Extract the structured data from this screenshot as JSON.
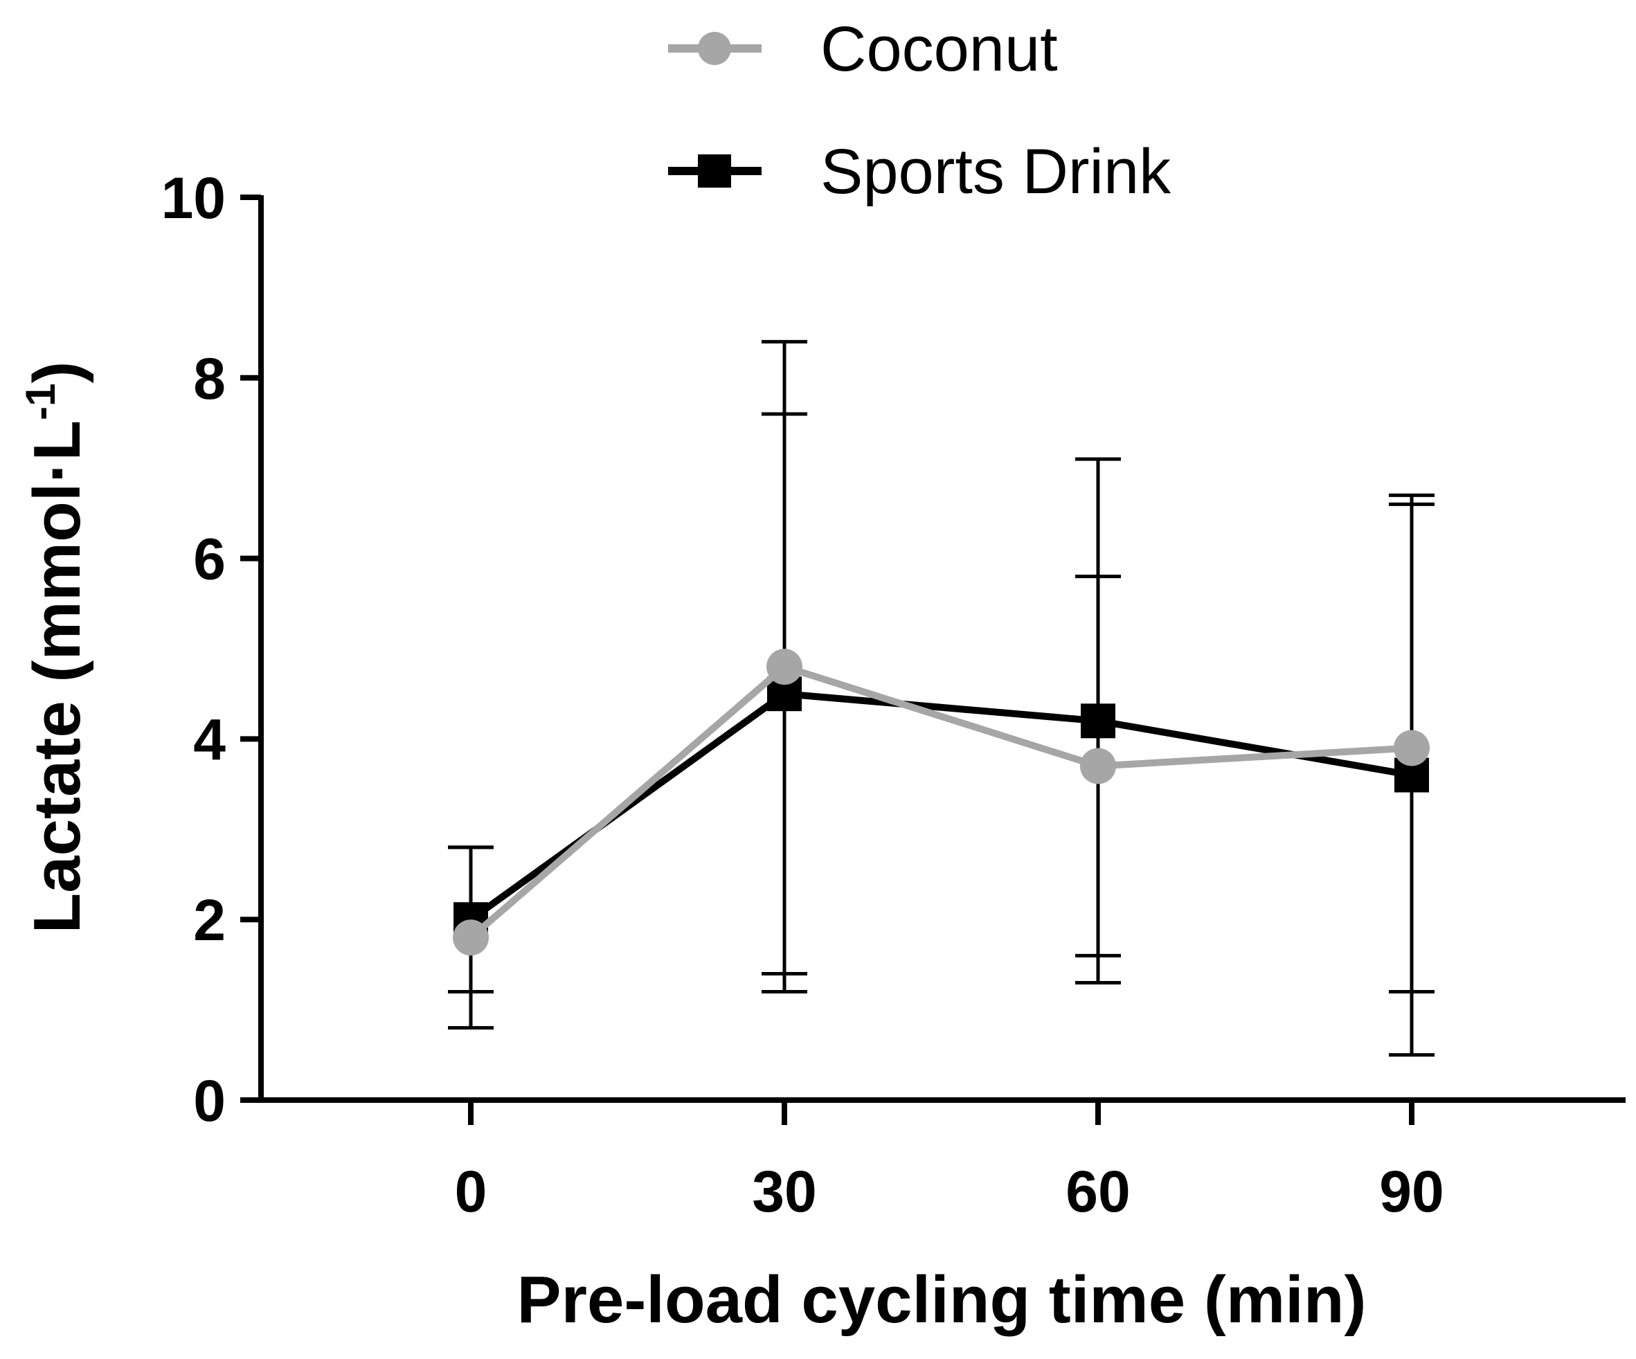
{
  "chart_data": {
    "type": "line",
    "xlabel": "Pre-load cycling time (min)",
    "ylabel": "Lactate  (mmol·L",
    "ylabel_superscript": "-1",
    "ylabel_close": ")",
    "x": [
      0,
      30,
      60,
      90
    ],
    "x_tick_labels": [
      "0",
      "30",
      "60",
      "90"
    ],
    "xlim": [
      -20,
      110
    ],
    "ylim": [
      0,
      10
    ],
    "y_ticks": [
      0,
      2,
      4,
      6,
      8,
      10
    ],
    "y_tick_labels": [
      "0",
      "2",
      "4",
      "6",
      "8",
      "10"
    ],
    "grid": false,
    "legend_position": "top-center",
    "series": [
      {
        "name": "Coconut",
        "color": "#a6a6a6",
        "marker": "circle",
        "values": [
          1.8,
          4.8,
          3.7,
          3.9
        ],
        "error_upper": [
          2.8,
          7.6,
          5.8,
          6.6
        ],
        "error_lower": [
          0.8,
          1.4,
          1.6,
          1.2
        ]
      },
      {
        "name": "Sports Drink",
        "color": "#000000",
        "marker": "square",
        "values": [
          2.0,
          4.5,
          4.2,
          3.6
        ],
        "error_upper": [
          2.8,
          8.4,
          7.1,
          6.7
        ],
        "error_lower": [
          1.2,
          1.2,
          1.3,
          0.5
        ]
      }
    ]
  }
}
